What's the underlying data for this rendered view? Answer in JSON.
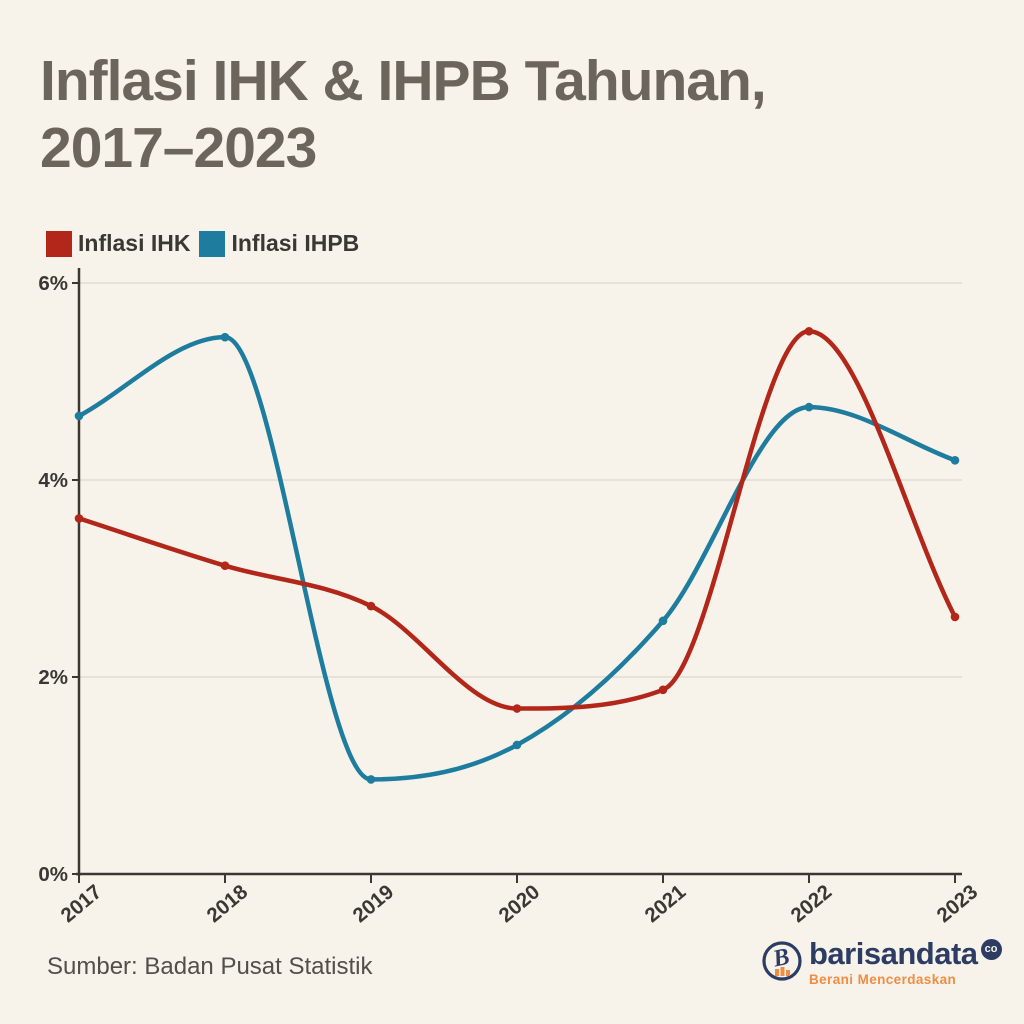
{
  "title": {
    "line1": "Inflasi IHK & IHPB Tahunan,",
    "line2": "2017–2023"
  },
  "legend": [
    {
      "label": "Inflasi IHK",
      "color": "#B2271A"
    },
    {
      "label": "Inflasi IHPB",
      "color": "#1E7C9E"
    }
  ],
  "source": "Sumber: Badan Pusat Statistik",
  "logo": {
    "name": "barisandata",
    "badge": "co",
    "tagline": "Berani Mencerdaskan"
  },
  "colors": {
    "background": "#F7F3EB",
    "title": "#6B655C",
    "ink": "#3B3733",
    "grid": "#DCD8D0",
    "axis": "#3B3733",
    "red": "#B2271A",
    "blue": "#1E7C9E",
    "muted": "#524E48",
    "navy": "#2C3C63",
    "orange": "#EE8D43"
  },
  "chart_data": {
    "type": "line",
    "title": "Inflasi IHK & IHPB Tahunan, 2017–2023",
    "x": [
      2017,
      2018,
      2019,
      2020,
      2021,
      2022,
      2023
    ],
    "series": [
      {
        "name": "Inflasi IHK",
        "color": "#B2271A",
        "values": [
          3.61,
          3.13,
          2.72,
          1.68,
          1.87,
          5.51,
          2.61
        ]
      },
      {
        "name": "Inflasi IHPB",
        "color": "#1E7C9E",
        "values": [
          4.65,
          5.45,
          0.96,
          1.31,
          2.57,
          4.74,
          4.2
        ]
      }
    ],
    "xlabel": "",
    "ylabel": "",
    "ylim": [
      0,
      6
    ],
    "yticks": [
      0,
      2,
      4,
      6
    ],
    "ytick_suffix": "%",
    "grid": "horizontal",
    "legend_position": "top-left",
    "curve": "smooth-monotone",
    "markers": true
  }
}
